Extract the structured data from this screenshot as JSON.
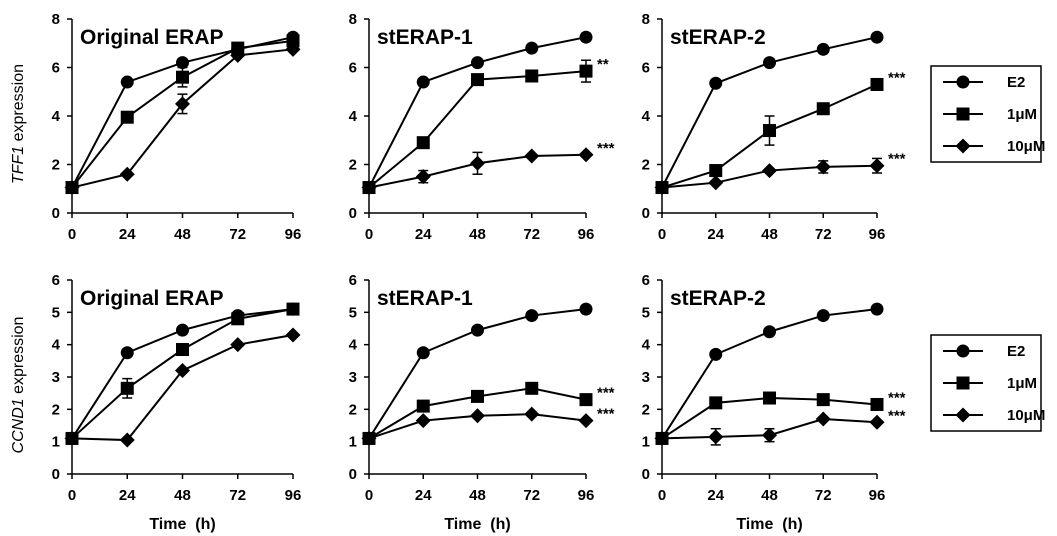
{
  "chart_data": [
    {
      "type": "line",
      "row": 0,
      "col": 0,
      "title": "Original ERAP",
      "ylabel_italic": "TFF1",
      "ylabel_rest": " expression",
      "xlabel": "",
      "x": [
        0,
        24,
        48,
        72,
        96
      ],
      "xticks": [
        "0",
        "24",
        "48",
        "72",
        "96"
      ],
      "ylim": [
        0,
        8
      ],
      "yticks": [
        "0",
        "2",
        "4",
        "6",
        "8"
      ],
      "series": [
        {
          "name": "E2",
          "marker": "circle",
          "values": [
            1.05,
            5.4,
            6.2,
            6.75,
            7.25
          ],
          "err": [
            0,
            0,
            0,
            0,
            0.15
          ]
        },
        {
          "name": "1μM",
          "marker": "square",
          "values": [
            1.05,
            3.95,
            5.6,
            6.8,
            7.1
          ],
          "err": [
            0,
            0,
            0.4,
            0,
            0
          ]
        },
        {
          "name": "10μM",
          "marker": "diamond",
          "values": [
            1.05,
            1.6,
            4.5,
            6.5,
            6.75
          ],
          "err": [
            0,
            0,
            0.4,
            0,
            0
          ]
        }
      ],
      "annotations": []
    },
    {
      "type": "line",
      "row": 0,
      "col": 1,
      "title": "stERAP-1",
      "ylabel_italic": "",
      "ylabel_rest": "",
      "xlabel": "",
      "x": [
        0,
        24,
        48,
        72,
        96
      ],
      "xticks": [
        "0",
        "24",
        "48",
        "72",
        "96"
      ],
      "ylim": [
        0,
        8
      ],
      "yticks": [
        "0",
        "2",
        "4",
        "6",
        "8"
      ],
      "series": [
        {
          "name": "E2",
          "marker": "circle",
          "values": [
            1.05,
            5.4,
            6.2,
            6.8,
            7.25
          ],
          "err": [
            0,
            0,
            0,
            0,
            0.15
          ]
        },
        {
          "name": "1μM",
          "marker": "square",
          "values": [
            1.05,
            2.9,
            5.5,
            5.65,
            5.85
          ],
          "err": [
            0,
            0,
            0,
            0,
            0.45
          ]
        },
        {
          "name": "10μM",
          "marker": "diamond",
          "values": [
            1.05,
            1.5,
            2.05,
            2.35,
            2.4
          ],
          "err": [
            0,
            0.25,
            0.45,
            0,
            0
          ]
        }
      ],
      "annotations": [
        {
          "text": "**",
          "series": 1
        },
        {
          "text": "***",
          "series": 2
        }
      ]
    },
    {
      "type": "line",
      "row": 0,
      "col": 2,
      "title": "stERAP-2",
      "ylabel_italic": "",
      "ylabel_rest": "",
      "xlabel": "",
      "x": [
        0,
        24,
        48,
        72,
        96
      ],
      "xticks": [
        "0",
        "24",
        "48",
        "72",
        "96"
      ],
      "ylim": [
        0,
        8
      ],
      "yticks": [
        "0",
        "2",
        "4",
        "6",
        "8"
      ],
      "series": [
        {
          "name": "E2",
          "marker": "circle",
          "values": [
            1.05,
            5.35,
            6.2,
            6.75,
            7.25
          ],
          "err": [
            0,
            0,
            0,
            0,
            0
          ]
        },
        {
          "name": "1μM",
          "marker": "square",
          "values": [
            1.05,
            1.75,
            3.4,
            4.3,
            5.3
          ],
          "err": [
            0,
            0,
            0.6,
            0,
            0
          ]
        },
        {
          "name": "10μM",
          "marker": "diamond",
          "values": [
            1.05,
            1.25,
            1.75,
            1.9,
            1.95
          ],
          "err": [
            0,
            0,
            0,
            0.25,
            0.3
          ]
        }
      ],
      "annotations": [
        {
          "text": "***",
          "series": 1
        },
        {
          "text": "***",
          "series": 2
        }
      ]
    },
    {
      "type": "line",
      "row": 1,
      "col": 0,
      "title": "Original ERAP",
      "ylabel_italic": "CCND1",
      "ylabel_rest": " expression",
      "xlabel": "Time  (h)",
      "x": [
        0,
        24,
        48,
        72,
        96
      ],
      "xticks": [
        "0",
        "24",
        "48",
        "72",
        "96"
      ],
      "ylim": [
        0,
        6
      ],
      "yticks": [
        "0",
        "1",
        "2",
        "3",
        "4",
        "5",
        "6"
      ],
      "series": [
        {
          "name": "E2",
          "marker": "circle",
          "values": [
            1.1,
            3.75,
            4.45,
            4.9,
            5.1
          ],
          "err": [
            0,
            0,
            0,
            0,
            0
          ]
        },
        {
          "name": "1μM",
          "marker": "square",
          "values": [
            1.1,
            2.65,
            3.85,
            4.8,
            5.1
          ],
          "err": [
            0,
            0.3,
            0,
            0,
            0
          ]
        },
        {
          "name": "10μM",
          "marker": "diamond",
          "values": [
            1.1,
            1.05,
            3.2,
            4.0,
            4.3
          ],
          "err": [
            0,
            0,
            0,
            0,
            0
          ]
        }
      ],
      "annotations": []
    },
    {
      "type": "line",
      "row": 1,
      "col": 1,
      "title": "stERAP-1",
      "ylabel_italic": "",
      "ylabel_rest": "",
      "xlabel": "Time  (h)",
      "x": [
        0,
        24,
        48,
        72,
        96
      ],
      "xticks": [
        "0",
        "24",
        "48",
        "72",
        "96"
      ],
      "ylim": [
        0,
        6
      ],
      "yticks": [
        "0",
        "1",
        "2",
        "3",
        "4",
        "5",
        "6"
      ],
      "series": [
        {
          "name": "E2",
          "marker": "circle",
          "values": [
            1.1,
            3.75,
            4.45,
            4.9,
            5.1
          ],
          "err": [
            0,
            0,
            0,
            0,
            0
          ]
        },
        {
          "name": "1μM",
          "marker": "square",
          "values": [
            1.1,
            2.1,
            2.4,
            2.65,
            2.3
          ],
          "err": [
            0,
            0,
            0,
            0,
            0
          ]
        },
        {
          "name": "10μM",
          "marker": "diamond",
          "values": [
            1.1,
            1.65,
            1.8,
            1.85,
            1.65
          ],
          "err": [
            0,
            0,
            0,
            0,
            0
          ]
        }
      ],
      "annotations": [
        {
          "text": "***",
          "series": 1
        },
        {
          "text": "***",
          "series": 2
        }
      ]
    },
    {
      "type": "line",
      "row": 1,
      "col": 2,
      "title": "stERAP-2",
      "ylabel_italic": "",
      "ylabel_rest": "",
      "xlabel": "Time  (h)",
      "x": [
        0,
        24,
        48,
        72,
        96
      ],
      "xticks": [
        "0",
        "24",
        "48",
        "72",
        "96"
      ],
      "ylim": [
        0,
        6
      ],
      "yticks": [
        "0",
        "1",
        "2",
        "3",
        "4",
        "5",
        "6"
      ],
      "series": [
        {
          "name": "E2",
          "marker": "circle",
          "values": [
            1.1,
            3.7,
            4.4,
            4.9,
            5.1
          ],
          "err": [
            0,
            0,
            0,
            0,
            0
          ]
        },
        {
          "name": "1μM",
          "marker": "square",
          "values": [
            1.1,
            2.2,
            2.35,
            2.3,
            2.15
          ],
          "err": [
            0,
            0,
            0,
            0,
            0
          ]
        },
        {
          "name": "10μM",
          "marker": "diamond",
          "values": [
            1.1,
            1.15,
            1.2,
            1.7,
            1.6
          ],
          "err": [
            0,
            0.25,
            0.2,
            0,
            0
          ]
        }
      ],
      "annotations": [
        {
          "text": "***",
          "series": 1
        },
        {
          "text": "***",
          "series": 2
        }
      ]
    }
  ],
  "legends": [
    {
      "row": 0,
      "placement": "right",
      "entries": [
        {
          "label": "E2",
          "marker": "circle"
        },
        {
          "label": "1μM",
          "marker": "square"
        },
        {
          "label": "10μM",
          "marker": "diamond"
        }
      ]
    },
    {
      "row": 1,
      "placement": "right",
      "entries": [
        {
          "label": "E2",
          "marker": "circle"
        },
        {
          "label": "1μM",
          "marker": "square"
        },
        {
          "label": "10μM",
          "marker": "diamond"
        }
      ]
    }
  ],
  "colors": {
    "line": "#000000",
    "axis": "#000000",
    "background": "#ffffff"
  }
}
